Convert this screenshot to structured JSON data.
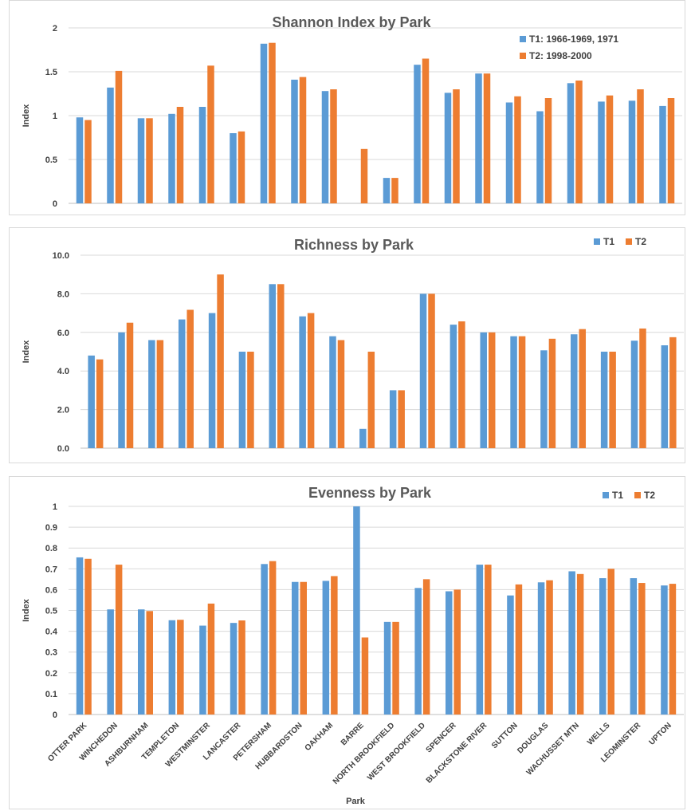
{
  "colors": {
    "t1": "#5B9BD5",
    "t2": "#ED7D31",
    "grid": "#d9d9d9",
    "axis": "#bfbfbf"
  },
  "chart_data": [
    {
      "type": "bar",
      "title": "Shannon Index by Park",
      "ylabel": "Index",
      "xlabel": "",
      "ylim": [
        0,
        2
      ],
      "yticks": [
        "0",
        "0.5",
        "1",
        "1.5",
        "2"
      ],
      "grid": true,
      "legend": "top-right",
      "categories": [
        "OTTER PARK",
        "WINCHEDON",
        "ASHBURNHAM",
        "TEMPLETON",
        "WESTMINSTER",
        "LANCASTER",
        "PETERSHAM",
        "HUBBARDSTON",
        "OAKHAM",
        "BARRE",
        "NORTH BROOKFIELD",
        "WEST BROOKFIELD",
        "SPENCER",
        "BLACKSTONE RIVER",
        "SUTTON",
        "DOUGLAS",
        "WACHUSSET MTN",
        "WELLS",
        "LEOMINSTER",
        "UPTON"
      ],
      "series": [
        {
          "name": "T1: 1966-1969, 1971",
          "values": [
            0.98,
            1.32,
            0.97,
            1.02,
            1.1,
            0.8,
            1.82,
            1.41,
            1.28,
            0,
            0.29,
            1.58,
            1.26,
            1.48,
            1.15,
            1.05,
            1.37,
            1.16,
            1.17,
            1.11
          ]
        },
        {
          "name": "T2: 1998-2000",
          "values": [
            0.95,
            1.51,
            0.97,
            1.1,
            1.57,
            0.82,
            1.83,
            1.44,
            1.3,
            0.62,
            0.29,
            1.65,
            1.3,
            1.48,
            1.22,
            1.2,
            1.4,
            1.23,
            1.3,
            1.2
          ]
        }
      ]
    },
    {
      "type": "bar",
      "title": "Richness by Park",
      "ylabel": "Index",
      "xlabel": "",
      "ylim": [
        0,
        10
      ],
      "yticks": [
        "0.0",
        "2.0",
        "4.0",
        "6.0",
        "8.0",
        "10.0"
      ],
      "grid": true,
      "legend": "top-right",
      "categories": [
        "OTTER PARK",
        "WINCHEDON",
        "ASHBURNHAM",
        "TEMPLETON",
        "WESTMINSTER",
        "LANCASTER",
        "PETERSHAM",
        "HUBBARDSTON",
        "OAKHAM",
        "BARRE",
        "NORTH BROOKFIELD",
        "WEST BROOKFIELD",
        "SPENCER",
        "BLACKSTONE RIVER",
        "SUTTON",
        "DOUGLAS",
        "WACHUSSET MTN",
        "WELLS",
        "LEOMINSTER",
        "UPTON"
      ],
      "series": [
        {
          "name": "T1",
          "values": [
            4.8,
            6.0,
            5.6,
            6.67,
            7.0,
            5.0,
            8.5,
            6.83,
            5.8,
            1.0,
            3.0,
            8.0,
            6.4,
            6.0,
            5.8,
            5.07,
            5.9,
            5.0,
            5.57,
            5.33
          ]
        },
        {
          "name": "T2",
          "values": [
            4.6,
            6.5,
            5.6,
            7.17,
            9.0,
            5.0,
            8.5,
            7.0,
            5.6,
            5.0,
            3.0,
            8.0,
            6.57,
            6.0,
            5.8,
            5.67,
            6.17,
            5.0,
            6.2,
            5.75
          ]
        }
      ]
    },
    {
      "type": "bar",
      "title": "Evenness by Park",
      "ylabel": "Index",
      "xlabel": "Park",
      "ylim": [
        0,
        1
      ],
      "yticks": [
        "0",
        "0.1",
        "0.2",
        "0.3",
        "0.4",
        "0.5",
        "0.6",
        "0.7",
        "0.8",
        "0.9",
        "1"
      ],
      "grid": true,
      "legend": "top-right",
      "categories": [
        "OTTER PARK",
        "WINCHEDON",
        "ASHBURNHAM",
        "TEMPLETON",
        "WESTMINSTER",
        "LANCASTER",
        "PETERSHAM",
        "HUBBARDSTON",
        "OAKHAM",
        "BARRE",
        "NORTH BROOKFIELD",
        "WEST BROOKFIELD",
        "SPENCER",
        "BLACKSTONE RIVER",
        "SUTTON",
        "DOUGLAS",
        "WACHUSSET MTN",
        "WELLS",
        "LEOMINSTER",
        "UPTON"
      ],
      "series": [
        {
          "name": "T1",
          "values": [
            0.755,
            0.505,
            0.505,
            0.453,
            0.427,
            0.44,
            0.723,
            0.637,
            0.642,
            1.0,
            0.445,
            0.608,
            0.592,
            0.72,
            0.572,
            0.635,
            0.688,
            0.655,
            0.655,
            0.62
          ]
        },
        {
          "name": "T2",
          "values": [
            0.748,
            0.72,
            0.497,
            0.455,
            0.533,
            0.452,
            0.737,
            0.637,
            0.665,
            0.37,
            0.445,
            0.65,
            0.6,
            0.72,
            0.625,
            0.645,
            0.675,
            0.7,
            0.632,
            0.628
          ]
        }
      ]
    }
  ]
}
